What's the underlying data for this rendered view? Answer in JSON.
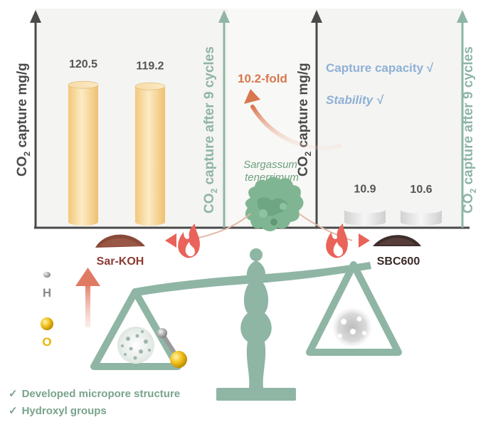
{
  "colors": {
    "background": "#ffffff",
    "panel": "#f4f4f2",
    "axis_dark": "#4a4a4a",
    "axis_green": "#8fb5a5",
    "balance": "#8fb5a5",
    "sar_bar": "#f6d89a",
    "sbc_bar": "#e7e7e7",
    "fold": "#d8774e",
    "blue_text": "#8fb0d6",
    "green_text": "#7aa38c",
    "flame": "#e9635a",
    "arrow_up": "#e07a63",
    "oxygen": "#e8b400",
    "hydrogen": "#8a8a8a"
  },
  "left_panel": {
    "y_axis_label": "capture mg/g",
    "y2_axis_label": "capture after 9 cycles",
    "co2_prefix": "CO",
    "co2_sub": "2"
  },
  "right_panel": {
    "y_axis_label": "capture mg/g",
    "y2_axis_label": "capture after 9 cycles",
    "co2_prefix": "CO",
    "co2_sub": "2",
    "notes": [
      "Capture capacity √",
      "Stability √"
    ]
  },
  "chart_data": [
    {
      "type": "bar",
      "categories": [
        "CO2 capture",
        "CO2 capture after 9 cycles"
      ],
      "values": [
        120.5,
        119.2
      ],
      "data_labels": [
        "120.5",
        "119.2"
      ],
      "sample": "Sar-KOH",
      "ylabel": "CO2 capture mg/g",
      "y2label": "CO2 capture after 9 cycles"
    },
    {
      "type": "bar",
      "categories": [
        "CO2 capture",
        "CO2 capture after 9 cycles"
      ],
      "values": [
        10.9,
        10.6
      ],
      "data_labels": [
        "10.9",
        "10.6"
      ],
      "sample": "SBC600",
      "ylabel": "CO2 capture mg/g",
      "y2label": "CO2 capture after 9 cycles"
    }
  ],
  "fold_label": "10.2-fold",
  "source": {
    "line1": "Sargassum",
    "line2": "tenerrimum"
  },
  "samples": {
    "left": "Sar-KOH",
    "right": "SBC600"
  },
  "legend": {
    "hydrogen": "H",
    "oxygen": "O"
  },
  "features": [
    "Developed micropore structure",
    "Hydroxyl groups"
  ],
  "check_mark": "✓"
}
